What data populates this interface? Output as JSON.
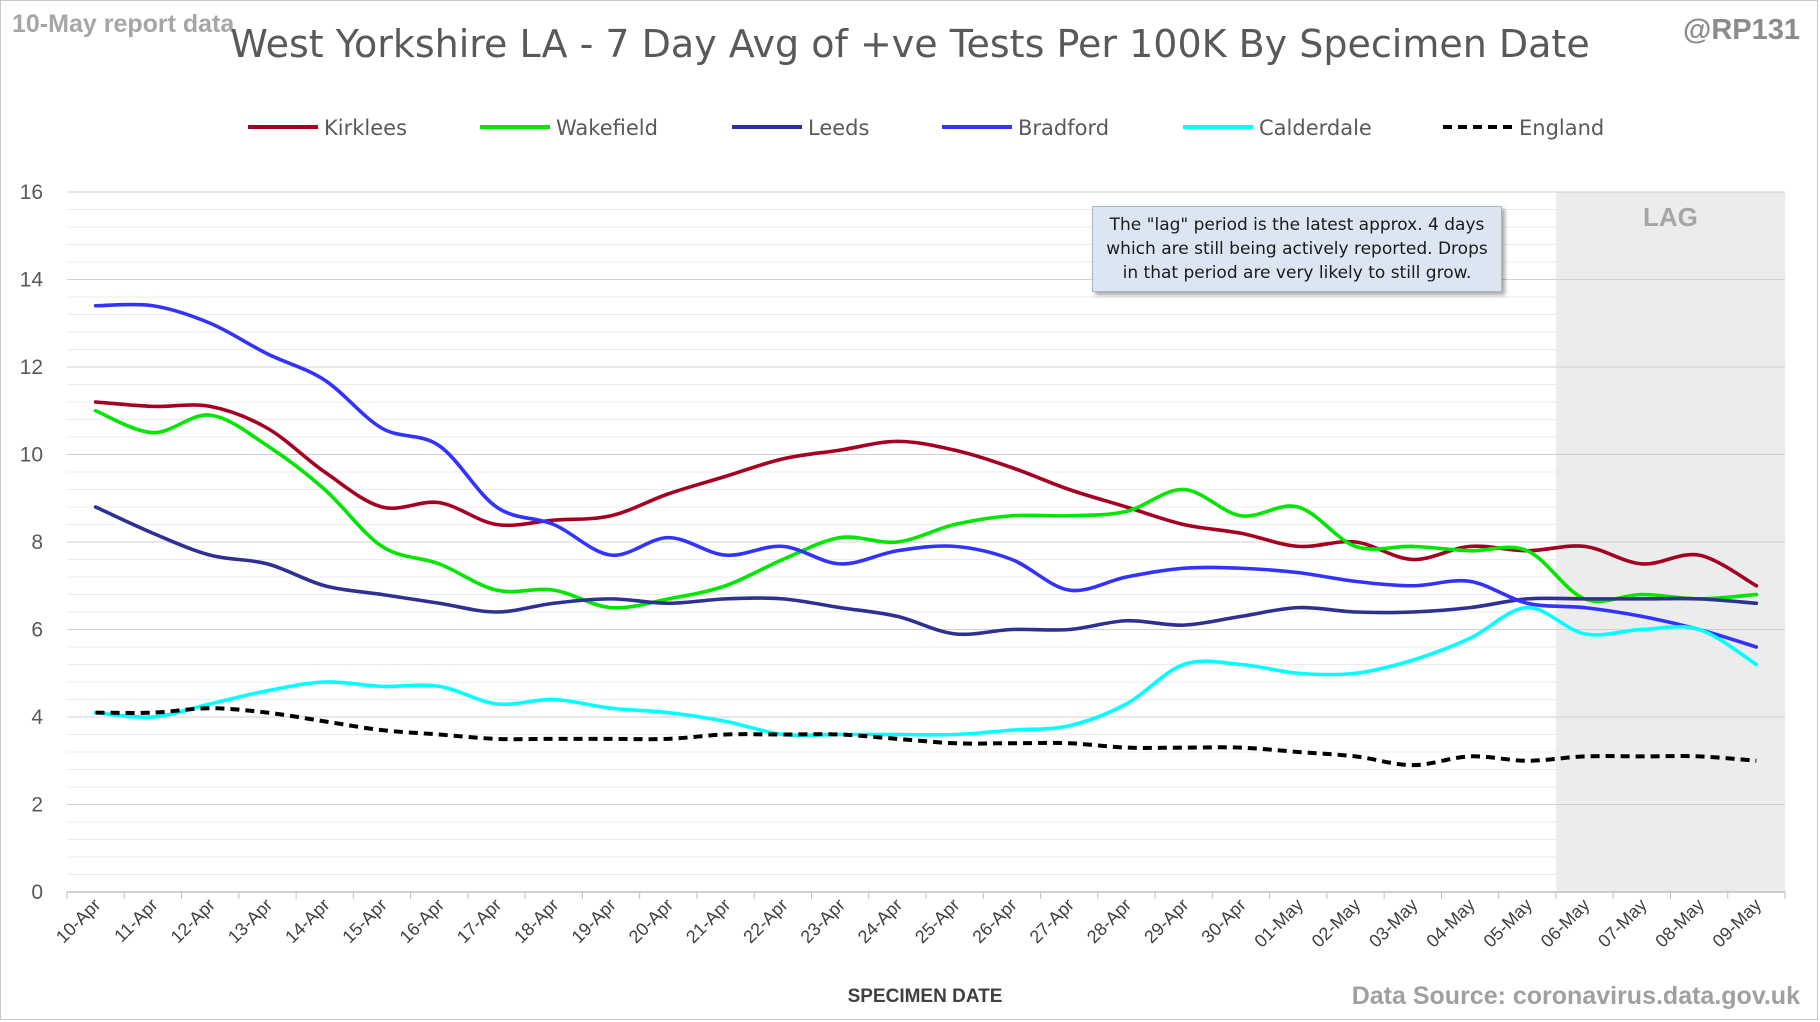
{
  "header": {
    "report_date": "10-May report data",
    "handle": "@RP131",
    "source": "Data Source: coronavirus.data.gov.uk"
  },
  "annotation": {
    "text": "The \"lag\" period is the latest approx. 4 days which are still being actively reported.  Drops in that period are very likely to still grow.",
    "lag_label": "LAG"
  },
  "chart_data": {
    "type": "line",
    "title": "West Yorkshire LA - 7 Day Avg of +ve Tests Per 100K By Specimen Date",
    "xlabel": "SPECIMEN DATE",
    "ylabel": "",
    "ylim": [
      0,
      16
    ],
    "yticks": [
      0,
      2,
      4,
      6,
      8,
      10,
      12,
      14,
      16
    ],
    "grid": true,
    "legend_position": "top",
    "lag_shaded_from": "06-May",
    "categories": [
      "10-Apr",
      "11-Apr",
      "12-Apr",
      "13-Apr",
      "14-Apr",
      "15-Apr",
      "16-Apr",
      "17-Apr",
      "18-Apr",
      "19-Apr",
      "20-Apr",
      "21-Apr",
      "22-Apr",
      "23-Apr",
      "24-Apr",
      "25-Apr",
      "26-Apr",
      "27-Apr",
      "28-Apr",
      "29-Apr",
      "30-Apr",
      "01-May",
      "02-May",
      "03-May",
      "04-May",
      "05-May",
      "06-May",
      "07-May",
      "08-May",
      "09-May"
    ],
    "series": [
      {
        "name": "Kirklees",
        "color": "#a50021",
        "dashed": false,
        "values": [
          11.2,
          11.1,
          11.1,
          10.6,
          9.6,
          8.8,
          8.9,
          8.4,
          8.5,
          8.6,
          9.1,
          9.5,
          9.9,
          10.1,
          10.3,
          10.1,
          9.7,
          9.2,
          8.8,
          8.4,
          8.2,
          7.9,
          8.0,
          7.6,
          7.9,
          7.8,
          7.9,
          7.5,
          7.7,
          7.0
        ]
      },
      {
        "name": "Wakefield",
        "color": "#00e600",
        "dashed": false,
        "values": [
          11.0,
          10.5,
          10.9,
          10.2,
          9.2,
          7.9,
          7.5,
          6.9,
          6.9,
          6.5,
          6.7,
          7.0,
          7.6,
          8.1,
          8.0,
          8.4,
          8.6,
          8.6,
          8.7,
          9.2,
          8.6,
          8.8,
          7.9,
          7.9,
          7.8,
          7.8,
          6.7,
          6.8,
          6.7,
          6.8
        ]
      },
      {
        "name": "Leeds",
        "color": "#2e3192",
        "dashed": false,
        "values": [
          8.8,
          8.2,
          7.7,
          7.5,
          7.0,
          6.8,
          6.6,
          6.4,
          6.6,
          6.7,
          6.6,
          6.7,
          6.7,
          6.5,
          6.3,
          5.9,
          6.0,
          6.0,
          6.2,
          6.1,
          6.3,
          6.5,
          6.4,
          6.4,
          6.5,
          6.7,
          6.7,
          6.7,
          6.7,
          6.6
        ]
      },
      {
        "name": "Bradford",
        "color": "#3333ff",
        "dashed": false,
        "values": [
          13.4,
          13.4,
          13.0,
          12.3,
          11.7,
          10.6,
          10.2,
          8.8,
          8.4,
          7.7,
          8.1,
          7.7,
          7.9,
          7.5,
          7.8,
          7.9,
          7.6,
          6.9,
          7.2,
          7.4,
          7.4,
          7.3,
          7.1,
          7.0,
          7.1,
          6.6,
          6.5,
          6.3,
          6.0,
          5.6
        ]
      },
      {
        "name": "Calderdale",
        "color": "#00ffff",
        "dashed": false,
        "values": [
          4.1,
          4.0,
          4.3,
          4.6,
          4.8,
          4.7,
          4.7,
          4.3,
          4.4,
          4.2,
          4.1,
          3.9,
          3.6,
          3.6,
          3.6,
          3.6,
          3.7,
          3.8,
          4.3,
          5.2,
          5.2,
          5.0,
          5.0,
          5.3,
          5.8,
          6.5,
          5.9,
          6.0,
          6.0,
          5.2
        ]
      },
      {
        "name": "England",
        "color": "#000000",
        "dashed": true,
        "values": [
          4.1,
          4.1,
          4.2,
          4.1,
          3.9,
          3.7,
          3.6,
          3.5,
          3.5,
          3.5,
          3.5,
          3.6,
          3.6,
          3.6,
          3.5,
          3.4,
          3.4,
          3.4,
          3.3,
          3.3,
          3.3,
          3.2,
          3.1,
          2.9,
          3.1,
          3.0,
          3.1,
          3.1,
          3.1,
          3.0
        ]
      }
    ]
  }
}
